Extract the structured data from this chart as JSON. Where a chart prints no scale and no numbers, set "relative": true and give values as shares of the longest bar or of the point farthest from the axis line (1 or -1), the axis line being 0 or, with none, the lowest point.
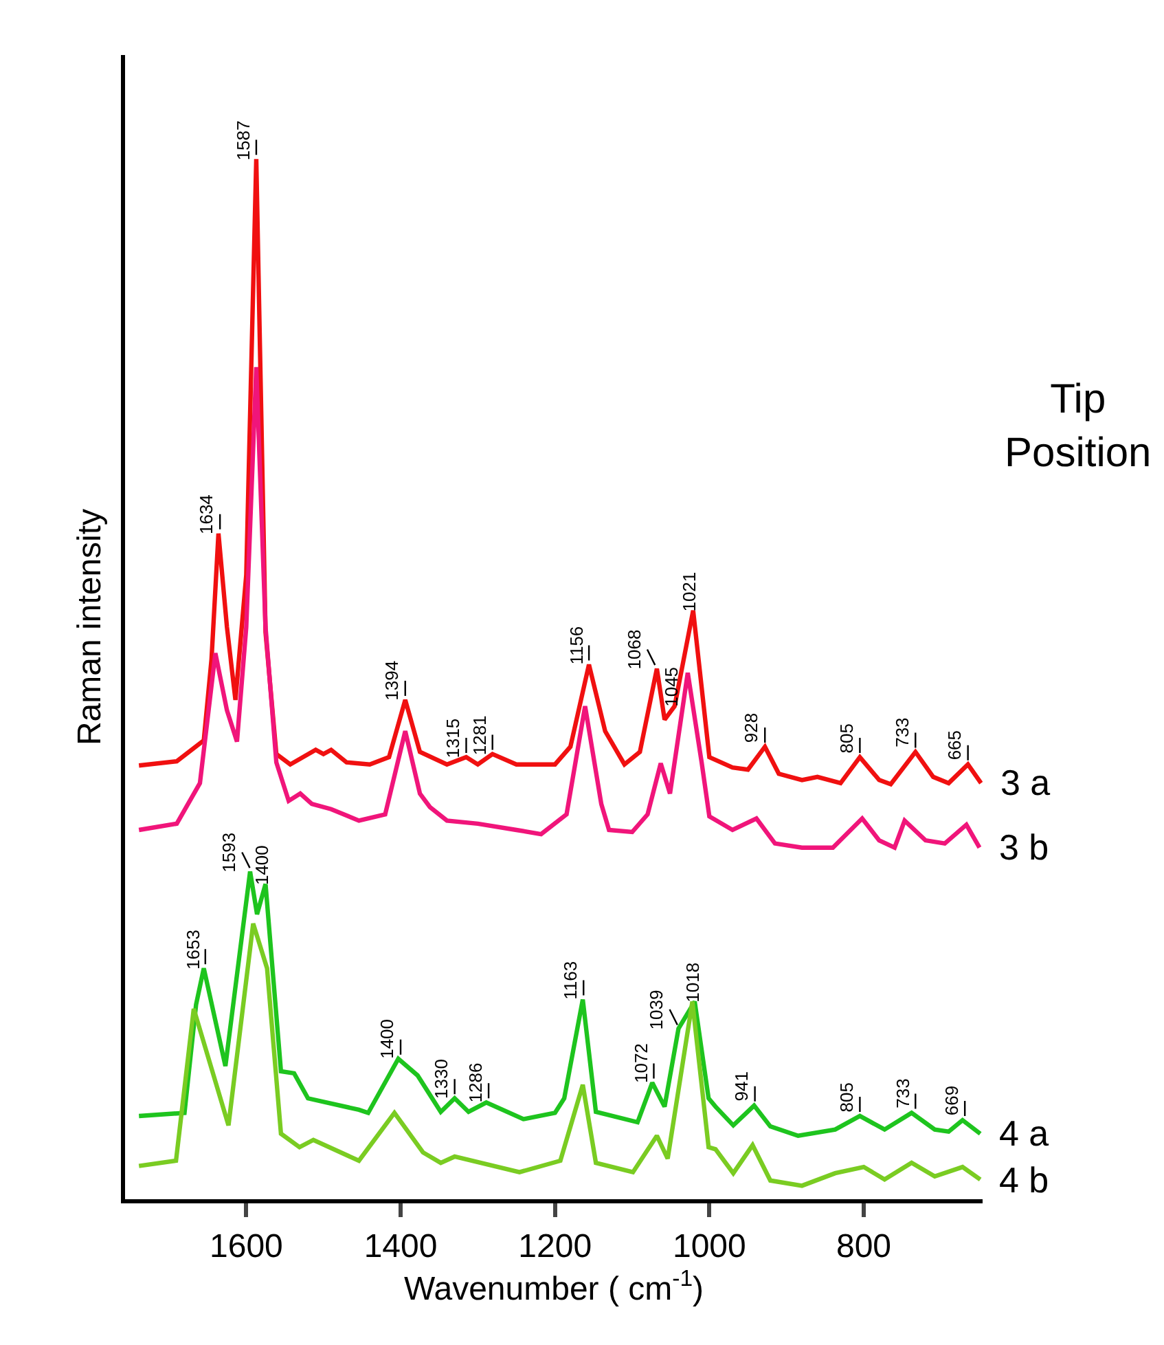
{
  "chart_data": {
    "type": "line",
    "relative": true,
    "xlabel": "Wavenumber ( cm$^{-1}$)",
    "ylabel": "Raman intensity",
    "legend_title": "Tip\nPosition",
    "xlim": [
      1757,
      646
    ],
    "xticks": [
      1600,
      1400,
      1200,
      1000,
      800
    ],
    "legend": false,
    "marker": "none",
    "line_style": "solid",
    "series": [
      {
        "name": "3 a",
        "color": "#f01010",
        "x": [
          1739,
          1690,
          1655,
          1645,
          1636,
          1625,
          1614,
          1600,
          1587,
          1575,
          1561,
          1543,
          1510,
          1500,
          1490,
          1470,
          1440,
          1415,
          1394,
          1375,
          1340,
          1315,
          1300,
          1281,
          1250,
          1200,
          1180,
          1156,
          1135,
          1110,
          1090,
          1068,
          1058,
          1045,
          1021,
          1000,
          970,
          950,
          928,
          910,
          880,
          860,
          830,
          805,
          780,
          765,
          733,
          710,
          690,
          665,
          648
        ],
        "values": [
          0.417,
          0.421,
          0.441,
          0.519,
          0.64,
          0.55,
          0.48,
          0.6,
          1.0,
          0.545,
          0.428,
          0.418,
          0.432,
          0.428,
          0.432,
          0.42,
          0.418,
          0.425,
          0.48,
          0.43,
          0.418,
          0.425,
          0.418,
          0.428,
          0.418,
          0.418,
          0.435,
          0.514,
          0.45,
          0.418,
          0.43,
          0.51,
          0.461,
          0.474,
          0.566,
          0.425,
          0.415,
          0.413,
          0.435,
          0.409,
          0.403,
          0.406,
          0.4,
          0.425,
          0.403,
          0.399,
          0.43,
          0.406,
          0.4,
          0.418,
          0.4
        ]
      },
      {
        "name": "3 b",
        "color": "#f0157a",
        "x": [
          1739,
          1690,
          1660,
          1640,
          1625,
          1612,
          1600,
          1587,
          1575,
          1561,
          1545,
          1530,
          1515,
          1490,
          1454,
          1420,
          1394,
          1375,
          1362,
          1340,
          1300,
          1250,
          1218,
          1185,
          1161,
          1140,
          1130,
          1100,
          1080,
          1063,
          1051,
          1028,
          1010,
          1000,
          970,
          939,
          915,
          880,
          840,
          802,
          780,
          760,
          747,
          720,
          695,
          667,
          650
        ],
        "values": [
          0.355,
          0.361,
          0.4,
          0.525,
          0.47,
          0.44,
          0.55,
          0.8,
          0.55,
          0.42,
          0.383,
          0.39,
          0.38,
          0.375,
          0.364,
          0.37,
          0.45,
          0.39,
          0.377,
          0.364,
          0.361,
          0.355,
          0.351,
          0.37,
          0.474,
          0.38,
          0.355,
          0.353,
          0.37,
          0.419,
          0.39,
          0.506,
          0.42,
          0.368,
          0.355,
          0.366,
          0.342,
          0.338,
          0.338,
          0.366,
          0.345,
          0.338,
          0.364,
          0.345,
          0.342,
          0.36,
          0.338
        ]
      },
      {
        "name": "4 a",
        "color": "#1ec41e",
        "x": [
          1739,
          1680,
          1665,
          1655,
          1627,
          1595,
          1586,
          1575,
          1555,
          1538,
          1520,
          1454,
          1442,
          1403,
          1378,
          1348,
          1330,
          1312,
          1289,
          1241,
          1200,
          1188,
          1164,
          1147,
          1093,
          1074,
          1058,
          1040,
          1019,
          1001,
          992,
          969,
          942,
          921,
          885,
          837,
          805,
          773,
          738,
          708,
          690,
          672,
          649
        ],
        "values": [
          0.08,
          0.083,
          0.187,
          0.222,
          0.128,
          0.315,
          0.274,
          0.303,
          0.123,
          0.121,
          0.097,
          0.086,
          0.083,
          0.135,
          0.119,
          0.084,
          0.097,
          0.084,
          0.093,
          0.077,
          0.083,
          0.097,
          0.192,
          0.084,
          0.074,
          0.112,
          0.089,
          0.164,
          0.19,
          0.097,
          0.089,
          0.071,
          0.09,
          0.07,
          0.061,
          0.067,
          0.08,
          0.067,
          0.083,
          0.067,
          0.065,
          0.076,
          0.063
        ]
      },
      {
        "name": "4 b",
        "color": "#7acc22",
        "x": [
          1739,
          1691,
          1668,
          1623,
          1591,
          1573,
          1555,
          1531,
          1513,
          1454,
          1408,
          1371,
          1348,
          1330,
          1246,
          1193,
          1164,
          1147,
          1099,
          1068,
          1054,
          1022,
          1001,
          992,
          969,
          944,
          921,
          880,
          837,
          800,
          773,
          738,
          708,
          672,
          649
        ],
        "values": [
          0.032,
          0.037,
          0.183,
          0.071,
          0.265,
          0.222,
          0.063,
          0.05,
          0.057,
          0.037,
          0.083,
          0.045,
          0.035,
          0.041,
          0.026,
          0.037,
          0.11,
          0.035,
          0.026,
          0.061,
          0.039,
          0.19,
          0.05,
          0.048,
          0.025,
          0.052,
          0.018,
          0.013,
          0.025,
          0.031,
          0.019,
          0.035,
          0.022,
          0.031,
          0.019
        ]
      }
    ],
    "annotations": [
      {
        "text": "1634",
        "x": 1634,
        "y": 0.64
      },
      {
        "text": "1587",
        "x": 1587,
        "y": 1.0
      },
      {
        "text": "1394",
        "x": 1394,
        "y": 0.48
      },
      {
        "text": "1315",
        "x": 1315,
        "y": 0.425
      },
      {
        "text": "1281",
        "x": 1281,
        "y": 0.428
      },
      {
        "text": "1156",
        "x": 1156,
        "y": 0.514
      },
      {
        "text": "1068",
        "x": 1068,
        "y": 0.51
      },
      {
        "text": "1045",
        "x": 1045,
        "y": 0.474
      },
      {
        "text": "1021",
        "x": 1021,
        "y": 0.566
      },
      {
        "text": "928",
        "x": 928,
        "y": 0.435
      },
      {
        "text": "805",
        "x": 805,
        "y": 0.425
      },
      {
        "text": "733",
        "x": 733,
        "y": 0.43
      },
      {
        "text": "665",
        "x": 665,
        "y": 0.418
      },
      {
        "text": "1653",
        "x": 1653,
        "y": 0.222
      },
      {
        "text": "1593",
        "x": 1593,
        "y": 0.315
      },
      {
        "text": "1400",
        "x": 1575,
        "y": 0.303
      },
      {
        "text": "1400",
        "x": 1400,
        "y": 0.135
      },
      {
        "text": "1330",
        "x": 1330,
        "y": 0.097
      },
      {
        "text": "1286",
        "x": 1286,
        "y": 0.093
      },
      {
        "text": "1163",
        "x": 1163,
        "y": 0.192
      },
      {
        "text": "1072",
        "x": 1072,
        "y": 0.112
      },
      {
        "text": "1039",
        "x": 1039,
        "y": 0.164
      },
      {
        "text": "1018",
        "x": 1018,
        "y": 0.19
      },
      {
        "text": "941",
        "x": 941,
        "y": 0.09
      },
      {
        "text": "805",
        "x": 805,
        "y": 0.08
      },
      {
        "text": "733",
        "x": 733,
        "y": 0.083
      },
      {
        "text": "669",
        "x": 669,
        "y": 0.076
      }
    ]
  }
}
